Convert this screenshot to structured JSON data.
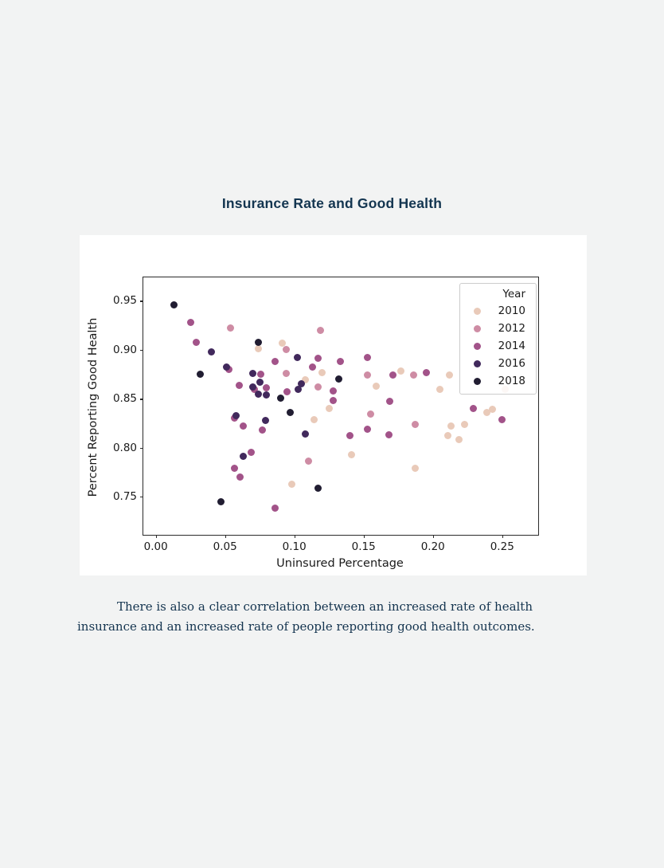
{
  "page": {
    "background": "#f2f3f3",
    "title": "Insurance Rate and Good Health",
    "title_color": "#133550",
    "paragraph": "There is also a clear correlation between an increased rate of health insurance and an increased rate of people reporting good health outcomes.",
    "text_color": "#14344f"
  },
  "chart_data": {
    "type": "scatter",
    "title": "",
    "xlabel": "Uninsured Percentage",
    "ylabel": "Percent Reporting Good Health",
    "xlim": [
      -0.009,
      0.276
    ],
    "ylim": [
      0.711,
      0.974
    ],
    "grid": false,
    "background": "#ffffff",
    "xticks": {
      "values": [
        0.0,
        0.05,
        0.1,
        0.15,
        0.2,
        0.25
      ],
      "labels": [
        "0.00",
        "0.05",
        "0.10",
        "0.15",
        "0.20",
        "0.25"
      ]
    },
    "yticks": {
      "values": [
        0.75,
        0.8,
        0.85,
        0.9,
        0.95
      ],
      "labels": [
        "0.75",
        "0.80",
        "0.85",
        "0.90",
        "0.95"
      ]
    },
    "legend": {
      "title": "Year",
      "position": "upper right"
    },
    "series": [
      {
        "name": "2010",
        "color": "#e9cab9",
        "points": [
          [
            0.074,
            0.901
          ],
          [
            0.091,
            0.907
          ],
          [
            0.108,
            0.869
          ],
          [
            0.12,
            0.877
          ],
          [
            0.177,
            0.878
          ],
          [
            0.159,
            0.863
          ],
          [
            0.212,
            0.874
          ],
          [
            0.205,
            0.86
          ],
          [
            0.252,
            0.86
          ],
          [
            0.125,
            0.84
          ],
          [
            0.114,
            0.829
          ],
          [
            0.098,
            0.763
          ],
          [
            0.239,
            0.836
          ],
          [
            0.243,
            0.839
          ],
          [
            0.141,
            0.793
          ],
          [
            0.187,
            0.779
          ],
          [
            0.213,
            0.822
          ],
          [
            0.211,
            0.812
          ],
          [
            0.219,
            0.808
          ],
          [
            0.223,
            0.824
          ]
        ]
      },
      {
        "name": "2012",
        "color": "#ce8ca4",
        "points": [
          [
            0.054,
            0.922
          ],
          [
            0.094,
            0.9
          ],
          [
            0.119,
            0.92
          ],
          [
            0.094,
            0.876
          ],
          [
            0.117,
            0.862
          ],
          [
            0.153,
            0.874
          ],
          [
            0.186,
            0.874
          ],
          [
            0.11,
            0.786
          ],
          [
            0.155,
            0.834
          ],
          [
            0.187,
            0.824
          ]
        ]
      },
      {
        "name": "2014",
        "color": "#a25389",
        "points": [
          [
            0.025,
            0.928
          ],
          [
            0.029,
            0.908
          ],
          [
            0.086,
            0.888
          ],
          [
            0.117,
            0.891
          ],
          [
            0.133,
            0.888
          ],
          [
            0.153,
            0.892
          ],
          [
            0.053,
            0.88
          ],
          [
            0.076,
            0.875
          ],
          [
            0.113,
            0.882
          ],
          [
            0.06,
            0.864
          ],
          [
            0.071,
            0.86
          ],
          [
            0.08,
            0.861
          ],
          [
            0.095,
            0.857
          ],
          [
            0.128,
            0.858
          ],
          [
            0.128,
            0.848
          ],
          [
            0.169,
            0.847
          ],
          [
            0.171,
            0.874
          ],
          [
            0.195,
            0.877
          ],
          [
            0.229,
            0.84
          ],
          [
            0.25,
            0.829
          ],
          [
            0.057,
            0.83
          ],
          [
            0.063,
            0.822
          ],
          [
            0.077,
            0.818
          ],
          [
            0.069,
            0.795
          ],
          [
            0.057,
            0.779
          ],
          [
            0.061,
            0.77
          ],
          [
            0.086,
            0.738
          ],
          [
            0.153,
            0.819
          ],
          [
            0.14,
            0.812
          ],
          [
            0.168,
            0.813
          ]
        ]
      },
      {
        "name": "2016",
        "color": "#41295c",
        "points": [
          [
            0.04,
            0.898
          ],
          [
            0.102,
            0.892
          ],
          [
            0.051,
            0.882
          ],
          [
            0.07,
            0.876
          ],
          [
            0.075,
            0.867
          ],
          [
            0.07,
            0.862
          ],
          [
            0.074,
            0.855
          ],
          [
            0.08,
            0.854
          ],
          [
            0.103,
            0.86
          ],
          [
            0.105,
            0.865
          ],
          [
            0.058,
            0.833
          ],
          [
            0.079,
            0.828
          ],
          [
            0.108,
            0.814
          ],
          [
            0.063,
            0.791
          ]
        ]
      },
      {
        "name": "2018",
        "color": "#211d32",
        "points": [
          [
            0.013,
            0.946
          ],
          [
            0.074,
            0.908
          ],
          [
            0.032,
            0.875
          ],
          [
            0.132,
            0.87
          ],
          [
            0.09,
            0.851
          ],
          [
            0.097,
            0.836
          ],
          [
            0.117,
            0.759
          ],
          [
            0.047,
            0.745
          ]
        ]
      }
    ]
  }
}
